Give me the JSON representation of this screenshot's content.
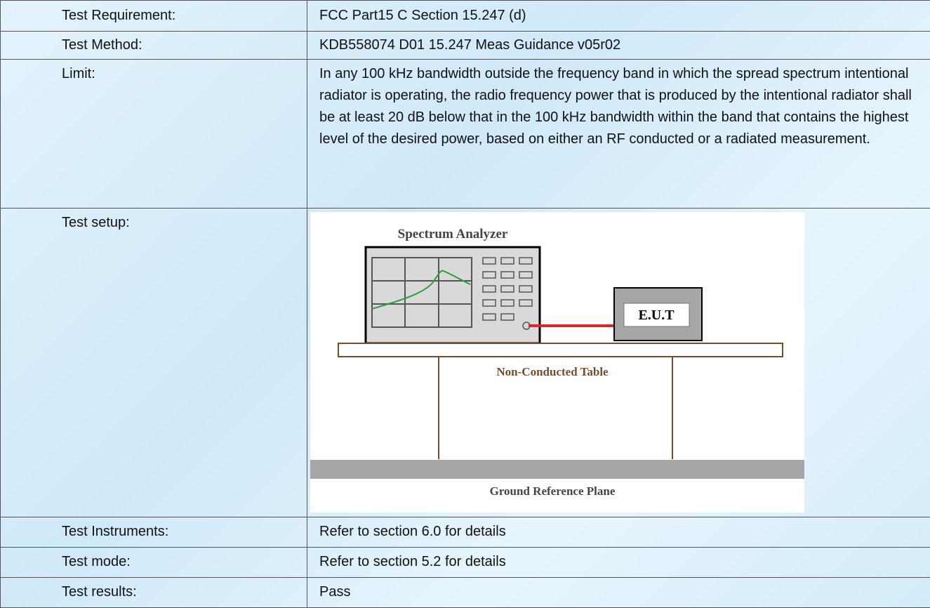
{
  "table": {
    "rows": [
      [
        "Test Requirement:",
        "FCC Part15 C Section 15.247 (d)"
      ],
      [
        "Test Method:",
        "KDB558074 D01 15.247 Meas Guidance v05r02"
      ],
      [
        "Limit:",
        "In any 100 kHz bandwidth outside the frequency band in which the spread spectrum intentional radiator is operating, the radio frequency power that is produced by the intentional radiator shall be at least 20 dB below that in the 100 kHz bandwidth within the band that contains the highest level of the desired power, based on either an RF conducted or a radiated measurement."
      ],
      [
        "Test setup:"
      ],
      [
        "Test Instruments:",
        "Refer to section 6.0 for details"
      ],
      [
        "Test mode:",
        "Refer to section 5.2 for details"
      ],
      [
        "Test results:",
        "Pass"
      ]
    ]
  },
  "diagram": {
    "analyzer": "Spectrum Analyzer",
    "eut": "E.U.T",
    "table": "Non-Conducted Table",
    "ground": "Ground Reference Plane"
  }
}
